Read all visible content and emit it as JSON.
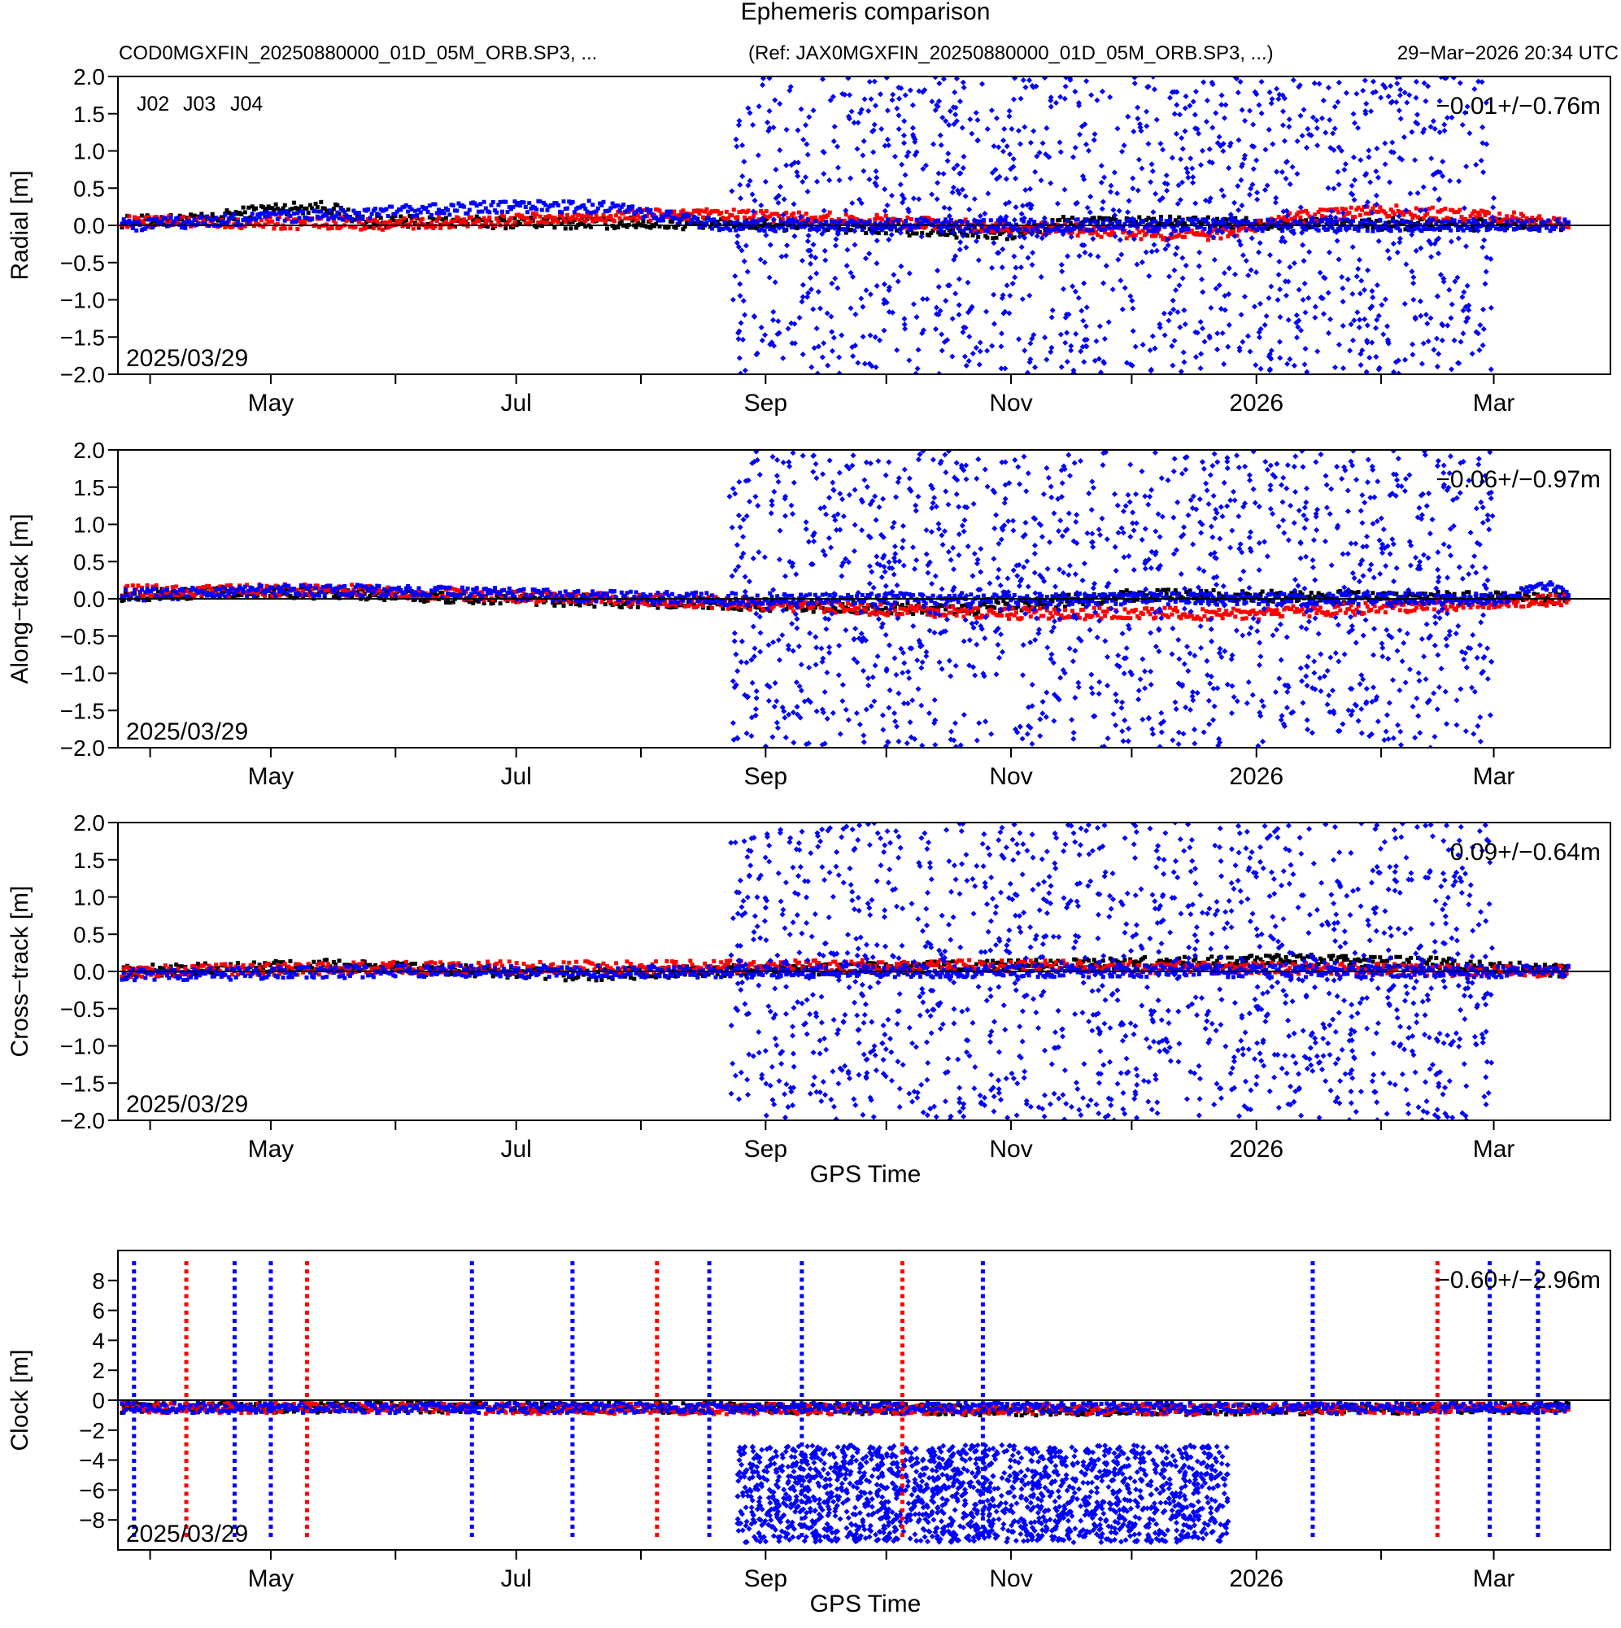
{
  "header": {
    "title": "Ephemeris comparison",
    "file_left": "COD0MGXFIN_20250880000_01D_05M_ORB.SP3, ...",
    "file_ref": "(Ref: JAX0MGXFIN_20250880000_01D_05M_ORB.SP3, ...)",
    "generated": "29−Mar−2026 20:34 UTC"
  },
  "legend": [
    {
      "label": "J02",
      "color": "#000000"
    },
    {
      "label": "J03",
      "color": "#ff0000"
    },
    {
      "label": "J04",
      "color": "#0000ff"
    }
  ],
  "colors": {
    "J02": "#000000",
    "J03": "#ff0000",
    "J04": "#0000ff"
  },
  "chart_data": [
    {
      "type": "scatter",
      "ylabel": "Radial [m]",
      "ylim": [
        -2.0,
        2.0
      ],
      "yticks": [
        "2.0",
        "1.5",
        "1.0",
        "0.5",
        "0.0",
        "−0.5",
        "−1.0",
        "−1.5",
        "−2.0"
      ],
      "stat": "−0.01+/−0.76m",
      "date_label": "2025/03/29",
      "xlabel": "",
      "xlim": [
        "2025-03-24",
        "2026-03-30"
      ],
      "xticks": [
        "May",
        "Jul",
        "Sep",
        "Nov",
        "2026",
        "Mar"
      ],
      "series": [
        {
          "name": "J02",
          "approx": [
            [
              "2025-03-25",
              0.05
            ],
            [
              "2025-04-15",
              0.08
            ],
            [
              "2025-04-30",
              0.22
            ],
            [
              "2025-05-15",
              0.25
            ],
            [
              "2025-05-25",
              0.05
            ],
            [
              "2025-09-01",
              0.02
            ],
            [
              "2025-11-01",
              -0.12
            ],
            [
              "2025-11-15",
              0.05
            ],
            [
              "2026-03-20",
              0.0
            ]
          ]
        },
        {
          "name": "J03",
          "approx": [
            [
              "2025-03-25",
              0.05
            ],
            [
              "2025-06-01",
              0.02
            ],
            [
              "2025-08-10",
              0.15
            ],
            [
              "2025-09-15",
              0.1
            ],
            [
              "2025-12-20",
              -0.15
            ],
            [
              "2026-01-10",
              0.1
            ],
            [
              "2026-02-01",
              0.2
            ],
            [
              "2026-03-20",
              0.05
            ]
          ]
        },
        {
          "name": "J04",
          "approx": [
            [
              "2025-03-25",
              0.0
            ],
            [
              "2025-06-25",
              0.25
            ],
            [
              "2025-07-25",
              0.25
            ],
            [
              "2025-08-20",
              0.0
            ],
            [
              "2026-03-01",
              0.0
            ],
            [
              "2026-03-20",
              0.0
            ]
          ],
          "scatter_range": [
            -2.0,
            2.0
          ],
          "scatter_period": [
            "2025-08-23",
            "2026-03-01"
          ]
        }
      ]
    },
    {
      "type": "scatter",
      "ylabel": "Along−track [m]",
      "ylim": [
        -2.0,
        2.0
      ],
      "yticks": [
        "2.0",
        "1.5",
        "1.0",
        "0.5",
        "0.0",
        "−0.5",
        "−1.0",
        "−1.5",
        "−2.0"
      ],
      "stat": "−0.06+/−0.97m",
      "date_label": "2025/03/29",
      "xlabel": "",
      "xlim": [
        "2025-03-24",
        "2026-03-30"
      ],
      "xticks": [
        "May",
        "Jul",
        "Sep",
        "Nov",
        "2026",
        "Mar"
      ],
      "series": [
        {
          "name": "J02",
          "approx": [
            [
              "2025-03-25",
              0.05
            ],
            [
              "2025-05-01",
              0.1
            ],
            [
              "2025-07-01",
              0.0
            ],
            [
              "2025-10-20",
              -0.15
            ],
            [
              "2025-12-01",
              0.05
            ],
            [
              "2026-03-20",
              0.0
            ]
          ]
        },
        {
          "name": "J03",
          "approx": [
            [
              "2025-03-25",
              0.1
            ],
            [
              "2025-05-15",
              0.12
            ],
            [
              "2025-08-20",
              -0.05
            ],
            [
              "2025-10-25",
              -0.2
            ],
            [
              "2026-01-01",
              -0.2
            ],
            [
              "2026-03-20",
              0.0
            ]
          ]
        },
        {
          "name": "J04",
          "approx": [
            [
              "2025-03-25",
              0.05
            ],
            [
              "2025-05-15",
              0.12
            ],
            [
              "2025-08-20",
              0.0
            ],
            [
              "2026-03-01",
              0.0
            ],
            [
              "2026-03-15",
              0.15
            ],
            [
              "2026-03-20",
              0.05
            ]
          ],
          "scatter_range": [
            -2.0,
            2.0
          ],
          "scatter_period": [
            "2025-08-23",
            "2026-03-01"
          ]
        }
      ]
    },
    {
      "type": "scatter",
      "ylabel": "Cross−track [m]",
      "ylim": [
        -2.0,
        2.0
      ],
      "yticks": [
        "2.0",
        "1.5",
        "1.0",
        "0.5",
        "0.0",
        "−0.5",
        "−1.0",
        "−1.5",
        "−2.0"
      ],
      "stat": "0.09+/−0.64m",
      "date_label": "2025/03/29",
      "xlabel": "GPS Time",
      "xlim": [
        "2025-03-24",
        "2026-03-30"
      ],
      "xticks": [
        "May",
        "Jul",
        "Sep",
        "Nov",
        "2026",
        "Mar"
      ],
      "series": [
        {
          "name": "J02",
          "approx": [
            [
              "2025-03-25",
              0.0
            ],
            [
              "2025-05-15",
              0.08
            ],
            [
              "2025-07-15",
              -0.05
            ],
            [
              "2025-08-20",
              0.0
            ],
            [
              "2026-01-10",
              0.15
            ],
            [
              "2026-02-10",
              0.12
            ],
            [
              "2026-03-20",
              0.0
            ]
          ]
        },
        {
          "name": "J03",
          "approx": [
            [
              "2025-03-25",
              0.0
            ],
            [
              "2025-06-01",
              0.05
            ],
            [
              "2025-10-15",
              0.08
            ],
            [
              "2026-03-20",
              0.0
            ]
          ]
        },
        {
          "name": "J04",
          "approx": [
            [
              "2025-03-25",
              -0.05
            ],
            [
              "2025-06-01",
              0.0
            ],
            [
              "2025-08-20",
              0.0
            ],
            [
              "2026-03-01",
              0.0
            ],
            [
              "2026-03-20",
              0.0
            ]
          ],
          "scatter_range": [
            -2.0,
            2.0
          ],
          "scatter_period": [
            "2025-08-23",
            "2026-03-01"
          ]
        }
      ]
    },
    {
      "type": "scatter",
      "ylabel": "Clock [m]",
      "ylim": [
        -10,
        10
      ],
      "yticks": [
        "8",
        "6",
        "4",
        "2",
        "0",
        "−2",
        "−4",
        "−6",
        "−8"
      ],
      "stat": "−0.60+/−2.96m",
      "date_label": "2025/03/29",
      "xlabel": "GPS Time",
      "xlim": [
        "2025-03-24",
        "2026-03-30"
      ],
      "xticks": [
        "May",
        "Jul",
        "Sep",
        "Nov",
        "2026",
        "Mar"
      ],
      "series": [
        {
          "name": "J02",
          "approx": [
            [
              "2025-03-25",
              -0.5
            ],
            [
              "2025-09-01",
              -0.5
            ],
            [
              "2025-11-01",
              -0.7
            ],
            [
              "2026-03-20",
              -0.5
            ]
          ]
        },
        {
          "name": "J03",
          "approx": [
            [
              "2025-03-25",
              -0.5
            ],
            [
              "2025-09-01",
              -0.6
            ],
            [
              "2026-01-01",
              -0.6
            ],
            [
              "2026-03-20",
              -0.5
            ]
          ]
        },
        {
          "name": "J04",
          "approx": [
            [
              "2025-03-25",
              -0.5
            ],
            [
              "2025-09-01",
              -0.5
            ],
            [
              "2026-03-20",
              -0.5
            ]
          ],
          "lower_cluster": [
            -9.5,
            -3.0
          ],
          "lower_period": [
            "2025-08-25",
            "2025-12-25"
          ]
        }
      ]
    }
  ]
}
